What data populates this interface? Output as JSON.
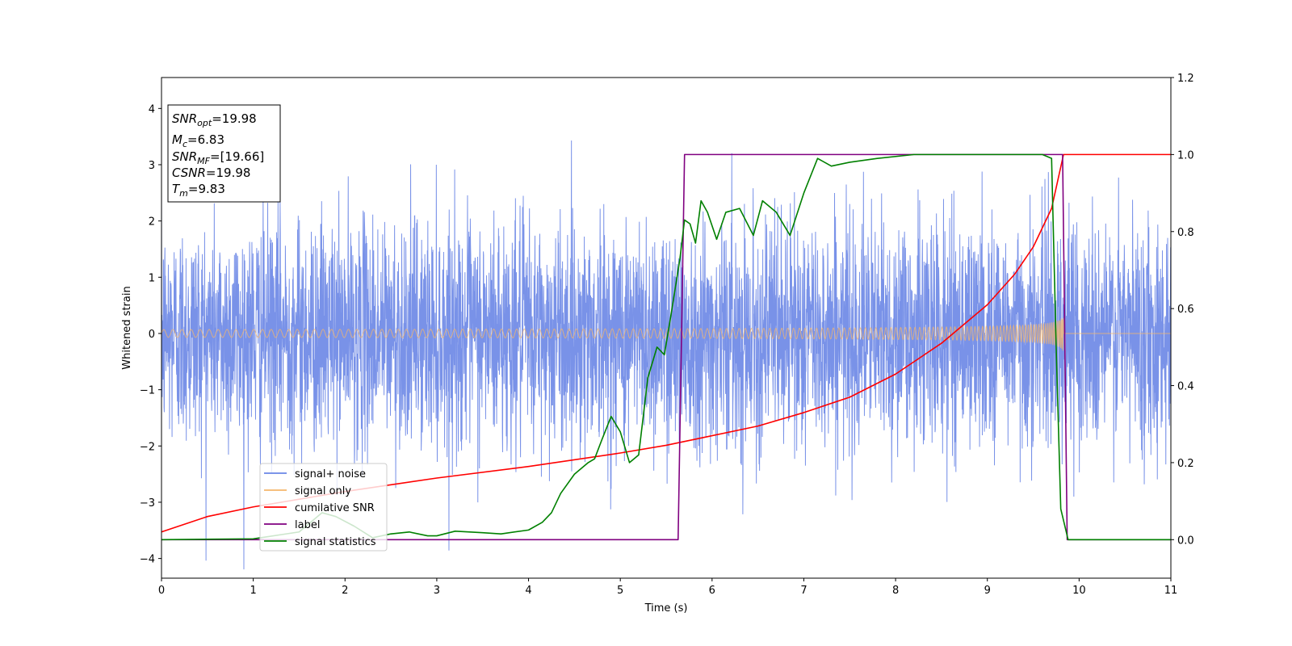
{
  "chart_data": {
    "type": "line",
    "xlabel": "Time (s)",
    "ylabel": "Whitened strain",
    "xlim": [
      0,
      11
    ],
    "ylim_left": [
      -4.35,
      4.55
    ],
    "ylim_right": [
      -0.1,
      1.2
    ],
    "x_ticks": [
      0,
      1,
      2,
      3,
      4,
      5,
      6,
      7,
      8,
      9,
      10,
      11
    ],
    "y_ticks_left": [
      -4,
      -3,
      -2,
      -1,
      0,
      1,
      2,
      3,
      4
    ],
    "y_ticks_right": [
      "0.0",
      "0.2",
      "0.4",
      "0.6",
      "0.8",
      "1.0",
      "1.2"
    ],
    "grid": false,
    "legend_position": "lower-left",
    "stats_box": {
      "snr_opt": {
        "base": "SNR",
        "sub": "opt",
        "value": "=19.98"
      },
      "mc": {
        "base": "M",
        "sub": "c",
        "value": "=6.83"
      },
      "snr_mf": {
        "base": "SNR",
        "sub": "MF",
        "value": "=[19.66]"
      },
      "csnr": {
        "base": "CSNR",
        "value": "=19.98"
      },
      "tm": {
        "base": "T",
        "sub": "m",
        "value": "=9.83"
      }
    },
    "series": [
      {
        "name": "signal+ noise",
        "color": "#6a86e6",
        "axis": "left",
        "description_values": {
          "noise_std": 1.0,
          "t_start": 0,
          "t_end": 11
        }
      },
      {
        "name": "signal only",
        "color": "#f5b66b",
        "axis": "left",
        "chirp": {
          "t_start": 0,
          "t_merge": 9.83,
          "amplitude_start": 0.07,
          "amplitude_merge": 1.25
        }
      },
      {
        "name": "cumilative SNR",
        "color": "#ff0000",
        "axis": "right",
        "x": [
          0,
          0.5,
          1,
          2,
          3,
          4,
          5,
          5.5,
          6,
          6.5,
          7,
          7.5,
          8,
          8.5,
          9,
          9.3,
          9.5,
          9.7,
          9.83,
          9.84,
          11
        ],
        "y": [
          0.02,
          0.06,
          0.085,
          0.125,
          0.16,
          0.19,
          0.225,
          0.245,
          0.27,
          0.295,
          0.33,
          0.37,
          0.43,
          0.51,
          0.61,
          0.69,
          0.76,
          0.86,
          1.0,
          1.0,
          1.0
        ]
      },
      {
        "name": "label",
        "color": "#800080",
        "axis": "right",
        "x": [
          0,
          5.63,
          5.7,
          9.82,
          9.87,
          11
        ],
        "y": [
          0,
          0,
          1,
          1,
          0,
          0
        ]
      },
      {
        "name": "signal statistics",
        "color": "#008000",
        "axis": "right",
        "x": [
          0,
          1.0,
          1.5,
          1.75,
          1.9,
          2.1,
          2.3,
          2.5,
          2.7,
          2.9,
          3.0,
          3.2,
          3.5,
          3.7,
          4.0,
          4.15,
          4.25,
          4.35,
          4.5,
          4.65,
          4.72,
          4.8,
          4.9,
          5.0,
          5.1,
          5.2,
          5.3,
          5.4,
          5.48,
          5.55,
          5.65,
          5.7,
          5.76,
          5.82,
          5.88,
          5.95,
          6.05,
          6.15,
          6.3,
          6.45,
          6.55,
          6.7,
          6.85,
          7.0,
          7.15,
          7.3,
          7.5,
          7.8,
          8.2,
          8.8,
          9.3,
          9.6,
          9.7,
          9.75,
          9.8,
          9.88,
          11
        ],
        "y": [
          0.0,
          0.002,
          0.02,
          0.07,
          0.06,
          0.035,
          0.005,
          0.015,
          0.02,
          0.01,
          0.01,
          0.022,
          0.018,
          0.015,
          0.025,
          0.045,
          0.07,
          0.12,
          0.17,
          0.2,
          0.21,
          0.26,
          0.32,
          0.28,
          0.2,
          0.22,
          0.42,
          0.5,
          0.48,
          0.58,
          0.73,
          0.83,
          0.82,
          0.77,
          0.88,
          0.85,
          0.78,
          0.85,
          0.86,
          0.79,
          0.88,
          0.85,
          0.79,
          0.9,
          0.99,
          0.97,
          0.98,
          0.99,
          1.0,
          1.0,
          1.0,
          1.0,
          0.99,
          0.5,
          0.08,
          0.0,
          0.0
        ]
      }
    ]
  }
}
